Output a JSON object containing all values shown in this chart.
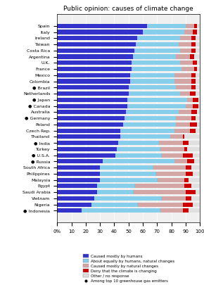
{
  "title": "Public opinion: causes of climate change",
  "countries": [
    "Spain",
    "Italy",
    "Ireland",
    "Taiwan",
    "Costa Rica",
    "Argentina",
    "U.K.",
    "France",
    "Mexico",
    "Colombia",
    "● Brazil",
    "Netherlands",
    "● Japan",
    "● Canada",
    "Australia",
    "● Germany",
    "Poland",
    "Czech Rep.",
    "Thailand",
    "● India",
    "Turkey",
    "● U.S.A.",
    "● Russia",
    "South Africa",
    "Philippines",
    "Malaysia",
    "Egypt",
    "Saudi Arabia",
    "Vietnam",
    "Nigeria",
    "● Indonesia"
  ],
  "humans": [
    63,
    60,
    56,
    55,
    54,
    53,
    52,
    52,
    51,
    51,
    50,
    50,
    49,
    49,
    48,
    47,
    46,
    44,
    44,
    43,
    42,
    41,
    32,
    30,
    30,
    30,
    28,
    28,
    26,
    24,
    17
  ],
  "equally": [
    27,
    29,
    30,
    30,
    32,
    30,
    34,
    35,
    31,
    31,
    33,
    36,
    42,
    41,
    37,
    36,
    37,
    38,
    35,
    28,
    30,
    32,
    50,
    37,
    39,
    40,
    26,
    25,
    47,
    32,
    55
  ],
  "natural": [
    6,
    6,
    8,
    9,
    8,
    10,
    9,
    9,
    12,
    12,
    11,
    7,
    4,
    5,
    9,
    11,
    10,
    11,
    9,
    17,
    17,
    15,
    9,
    23,
    21,
    19,
    35,
    37,
    17,
    32,
    16
  ],
  "deny": [
    2,
    3,
    3,
    3,
    3,
    3,
    3,
    2,
    3,
    3,
    3,
    4,
    4,
    4,
    4,
    3,
    5,
    4,
    1,
    4,
    2,
    7,
    5,
    4,
    5,
    3,
    5,
    7,
    4,
    7,
    4
  ],
  "other": [
    2,
    2,
    3,
    3,
    3,
    4,
    2,
    2,
    3,
    3,
    3,
    3,
    1,
    1,
    2,
    3,
    2,
    3,
    11,
    8,
    9,
    5,
    4,
    6,
    5,
    8,
    6,
    3,
    6,
    5,
    8
  ],
  "color_humans": "#3333cc",
  "color_equally": "#87ceeb",
  "color_natural": "#d4a5a5",
  "color_deny": "#cc0000",
  "color_other": "#e0e0e0",
  "legend_labels": [
    "Caused mostly by humans",
    "About equally by humans, natural changes",
    "Caused mostly by natural changes",
    "Deny that the climate is changing",
    "Other / no response",
    "Among top 10 greenhouse gas emitters"
  ],
  "bar_height": 0.7
}
